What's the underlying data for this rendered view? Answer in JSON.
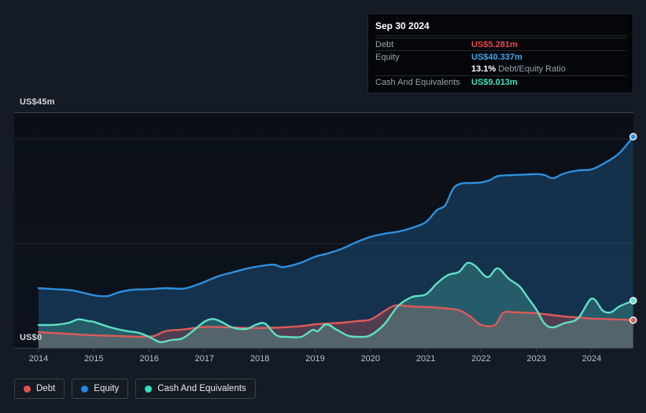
{
  "y_axis": {
    "top_label": "US$45m",
    "zero_label": "US$0"
  },
  "tooltip": {
    "date": "Sep 30 2024",
    "rows": [
      {
        "id": "debt",
        "label": "Debt",
        "value": "US$5.281m",
        "value_color": "#e8484a",
        "sep": true
      },
      {
        "id": "equity",
        "label": "Equity",
        "value": "US$40.337m",
        "value_color": "#3fa7ea",
        "sep": true
      },
      {
        "id": "ratio",
        "label": "",
        "ratio_bold": "13.1%",
        "ratio_text": " Debt/Equity Ratio",
        "sep": false
      },
      {
        "id": "cash",
        "label": "Cash And Equivalents",
        "value": "US$9.013m",
        "value_color": "#43dfc0",
        "sep": true
      }
    ]
  },
  "legend": {
    "items": [
      {
        "id": "debt",
        "label": "Debt",
        "dot_color": "#e0504d"
      },
      {
        "id": "equity",
        "label": "Equity",
        "dot_color": "#1f87e5"
      },
      {
        "id": "cash",
        "label": "Cash And Equivalents",
        "dot_color": "#2fe0ba"
      }
    ]
  },
  "chart_data": {
    "type": "area",
    "title": "",
    "unit": "US$m",
    "xlim": [
      2014,
      2024.75
    ],
    "ylim": [
      0,
      45
    ],
    "x_ticks": [
      "2014",
      "2015",
      "2016",
      "2017",
      "2018",
      "2019",
      "2020",
      "2021",
      "2022",
      "2023",
      "2024"
    ],
    "gridlines": [
      {
        "value": 45,
        "strong": true
      },
      {
        "value": 40,
        "strong": false
      },
      {
        "value": 20,
        "strong": false
      },
      {
        "value": 0,
        "strong": true
      }
    ],
    "end_values": {
      "debt": 5.281,
      "equity": 40.337,
      "cash": 9.013,
      "debt_equity_ratio_pct": 13.1,
      "as_of": "Sep 30 2024"
    },
    "series": [
      {
        "id": "equity",
        "name": "Equity",
        "color": "#2f8fdd",
        "fill": "rgba(47,143,221,0.26)",
        "points": [
          [
            2014.0,
            11.4
          ],
          [
            2014.3,
            11.2
          ],
          [
            2014.6,
            11.0
          ],
          [
            2014.85,
            10.4
          ],
          [
            2015.05,
            9.95
          ],
          [
            2015.25,
            9.9
          ],
          [
            2015.45,
            10.6
          ],
          [
            2015.7,
            11.1
          ],
          [
            2016.0,
            11.2
          ],
          [
            2016.3,
            11.4
          ],
          [
            2016.6,
            11.3
          ],
          [
            2016.8,
            11.8
          ],
          [
            2017.0,
            12.6
          ],
          [
            2017.25,
            13.7
          ],
          [
            2017.5,
            14.4
          ],
          [
            2017.75,
            15.1
          ],
          [
            2018.0,
            15.6
          ],
          [
            2018.25,
            15.9
          ],
          [
            2018.4,
            15.4
          ],
          [
            2018.6,
            15.8
          ],
          [
            2018.8,
            16.5
          ],
          [
            2019.0,
            17.4
          ],
          [
            2019.25,
            18.1
          ],
          [
            2019.5,
            19.0
          ],
          [
            2019.75,
            20.2
          ],
          [
            2020.0,
            21.2
          ],
          [
            2020.25,
            21.8
          ],
          [
            2020.5,
            22.2
          ],
          [
            2020.75,
            22.9
          ],
          [
            2021.0,
            24.0
          ],
          [
            2021.2,
            26.3
          ],
          [
            2021.35,
            27.2
          ],
          [
            2021.5,
            30.5
          ],
          [
            2021.65,
            31.4
          ],
          [
            2021.85,
            31.5
          ],
          [
            2022.0,
            31.6
          ],
          [
            2022.15,
            32.0
          ],
          [
            2022.3,
            32.8
          ],
          [
            2022.55,
            33.0
          ],
          [
            2022.8,
            33.1
          ],
          [
            2023.0,
            33.2
          ],
          [
            2023.15,
            33.0
          ],
          [
            2023.3,
            32.4
          ],
          [
            2023.5,
            33.3
          ],
          [
            2023.75,
            33.9
          ],
          [
            2024.0,
            34.1
          ],
          [
            2024.25,
            35.4
          ],
          [
            2024.5,
            37.2
          ],
          [
            2024.75,
            40.337
          ]
        ]
      },
      {
        "id": "debt",
        "name": "Debt",
        "color": "#dc5a58",
        "fill": "rgba(220,90,88,0.30)",
        "points": [
          [
            2014.0,
            3.0
          ],
          [
            2014.5,
            2.7
          ],
          [
            2015.0,
            2.4
          ],
          [
            2015.5,
            2.25
          ],
          [
            2015.9,
            2.1
          ],
          [
            2016.1,
            2.3
          ],
          [
            2016.3,
            3.2
          ],
          [
            2016.6,
            3.5
          ],
          [
            2016.9,
            3.9
          ],
          [
            2017.1,
            4.0
          ],
          [
            2017.5,
            3.9
          ],
          [
            2017.75,
            3.8
          ],
          [
            2018.0,
            3.8
          ],
          [
            2018.4,
            3.9
          ],
          [
            2018.8,
            4.2
          ],
          [
            2019.0,
            4.5
          ],
          [
            2019.5,
            4.8
          ],
          [
            2019.75,
            5.1
          ],
          [
            2020.0,
            5.4
          ],
          [
            2020.25,
            7.0
          ],
          [
            2020.45,
            8.1
          ],
          [
            2020.75,
            7.9
          ],
          [
            2021.0,
            7.8
          ],
          [
            2021.3,
            7.6
          ],
          [
            2021.6,
            7.2
          ],
          [
            2021.8,
            6.0
          ],
          [
            2022.0,
            4.4
          ],
          [
            2022.25,
            4.35
          ],
          [
            2022.4,
            6.7
          ],
          [
            2022.6,
            6.8
          ],
          [
            2022.85,
            6.7
          ],
          [
            2023.0,
            6.6
          ],
          [
            2023.25,
            6.3
          ],
          [
            2023.5,
            6.0
          ],
          [
            2023.75,
            5.8
          ],
          [
            2024.0,
            5.6
          ],
          [
            2024.4,
            5.45
          ],
          [
            2024.75,
            5.281
          ]
        ]
      },
      {
        "id": "cash",
        "name": "Cash And Equivalents",
        "color": "#5fe0c4",
        "fill": "rgba(95,224,196,0.24)",
        "points": [
          [
            2014.0,
            4.35
          ],
          [
            2014.3,
            4.4
          ],
          [
            2014.55,
            4.8
          ],
          [
            2014.72,
            5.45
          ],
          [
            2014.9,
            5.1
          ],
          [
            2015.0,
            4.95
          ],
          [
            2015.3,
            3.9
          ],
          [
            2015.6,
            3.2
          ],
          [
            2015.8,
            2.9
          ],
          [
            2016.0,
            2.1
          ],
          [
            2016.2,
            1.1
          ],
          [
            2016.4,
            1.5
          ],
          [
            2016.6,
            1.8
          ],
          [
            2016.8,
            3.3
          ],
          [
            2017.0,
            5.0
          ],
          [
            2017.15,
            5.5
          ],
          [
            2017.3,
            5.0
          ],
          [
            2017.5,
            3.9
          ],
          [
            2017.75,
            3.6
          ],
          [
            2017.95,
            4.5
          ],
          [
            2018.1,
            4.6
          ],
          [
            2018.3,
            2.4
          ],
          [
            2018.5,
            2.1
          ],
          [
            2018.75,
            2.1
          ],
          [
            2018.95,
            3.4
          ],
          [
            2019.05,
            3.2
          ],
          [
            2019.2,
            4.5
          ],
          [
            2019.4,
            3.4
          ],
          [
            2019.6,
            2.3
          ],
          [
            2019.8,
            2.1
          ],
          [
            2020.0,
            2.4
          ],
          [
            2020.25,
            4.5
          ],
          [
            2020.5,
            8.0
          ],
          [
            2020.75,
            9.7
          ],
          [
            2021.0,
            10.2
          ],
          [
            2021.2,
            12.3
          ],
          [
            2021.4,
            13.9
          ],
          [
            2021.6,
            14.5
          ],
          [
            2021.75,
            16.2
          ],
          [
            2021.9,
            15.6
          ],
          [
            2022.05,
            13.9
          ],
          [
            2022.15,
            13.6
          ],
          [
            2022.3,
            15.2
          ],
          [
            2022.5,
            13.2
          ],
          [
            2022.7,
            11.7
          ],
          [
            2022.85,
            9.5
          ],
          [
            2023.0,
            7.3
          ],
          [
            2023.15,
            4.6
          ],
          [
            2023.3,
            3.9
          ],
          [
            2023.5,
            4.7
          ],
          [
            2023.75,
            5.6
          ],
          [
            2024.0,
            9.4
          ],
          [
            2024.2,
            7.1
          ],
          [
            2024.35,
            6.8
          ],
          [
            2024.5,
            7.9
          ],
          [
            2024.75,
            9.013
          ]
        ]
      }
    ],
    "legend_position": "bottom-left",
    "colors": {
      "page_bg": "#151b24",
      "plot_bg_top": "#0a0f17",
      "plot_bg_bottom": "#0d131c",
      "grid_strong": "#3a4250",
      "grid_weak": "#242b37",
      "x_label": "#bac0c9",
      "y_label": "#d3d7dd"
    }
  }
}
